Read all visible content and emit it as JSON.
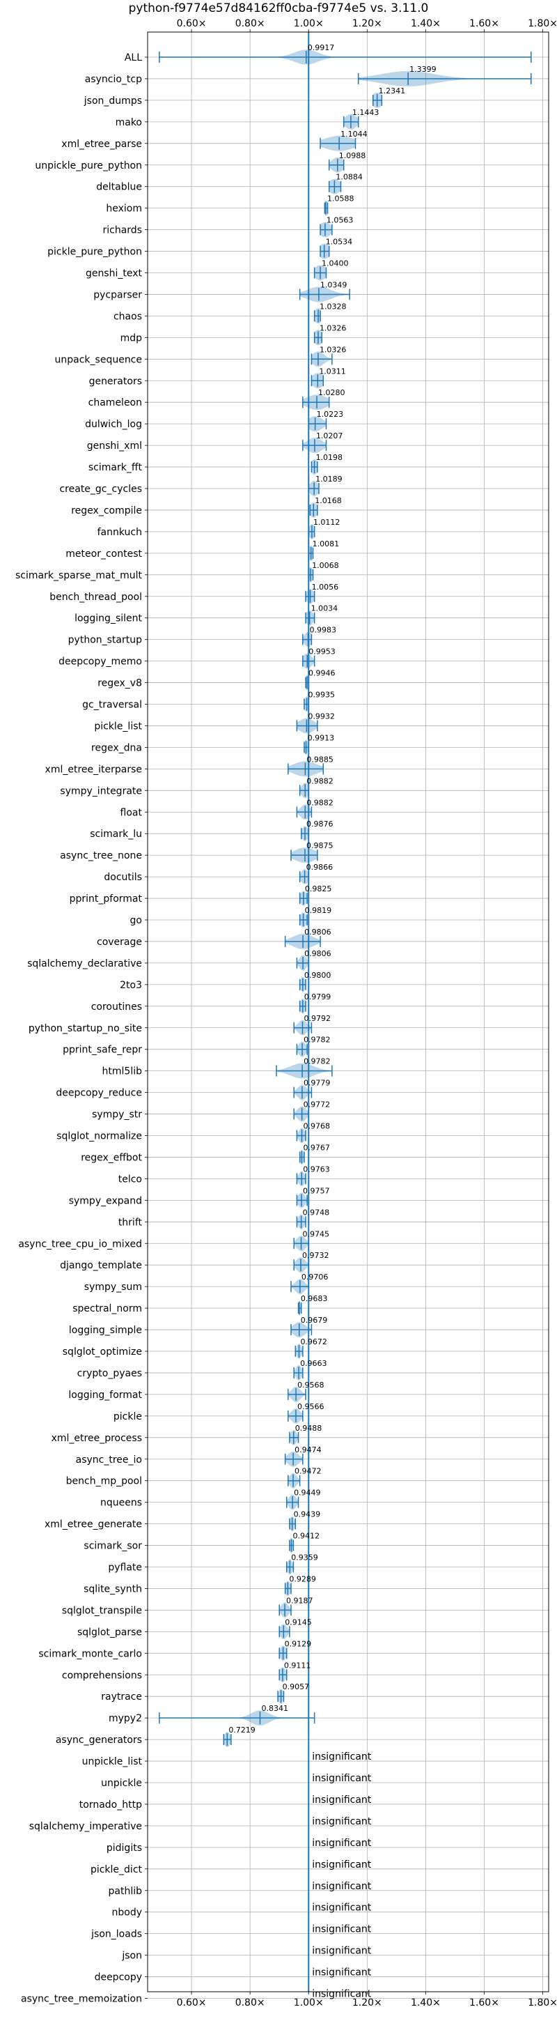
{
  "chart_data": {
    "type": "violin",
    "title": "python-f9774e57d84162ff0cba-f9774e5 vs. 3.11.0",
    "xlim": [
      0.45,
      1.82
    ],
    "xticks": [
      0.6,
      0.8,
      1.0,
      1.2,
      1.4,
      1.6,
      1.8
    ],
    "xtick_labels": [
      "0.60×",
      "0.80×",
      "1.00×",
      "1.20×",
      "1.40×",
      "1.60×",
      "1.80×"
    ],
    "reference_line": 1.0,
    "grid": true,
    "insignificant_label": "insignificant",
    "benchmarks": [
      {
        "name": "ALL",
        "value": 0.9917,
        "label": "0.9917",
        "min": 0.49,
        "max": 1.76,
        "spread": 0.04
      },
      {
        "name": "asyncio_tcp",
        "value": 1.3399,
        "label": "1.3399",
        "min": 1.17,
        "max": 1.76,
        "spread": 0.09
      },
      {
        "name": "json_dumps",
        "value": 1.2341,
        "label": "1.2341",
        "min": 1.22,
        "max": 1.25,
        "spread": 0.02
      },
      {
        "name": "mako",
        "value": 1.1443,
        "label": "1.1443",
        "min": 1.12,
        "max": 1.17,
        "spread": 0.02
      },
      {
        "name": "xml_etree_parse",
        "value": 1.1044,
        "label": "1.1044",
        "min": 1.04,
        "max": 1.16,
        "spread": 0.05
      },
      {
        "name": "unpickle_pure_python",
        "value": 1.0988,
        "label": "1.0988",
        "min": 1.07,
        "max": 1.12,
        "spread": 0.02
      },
      {
        "name": "deltablue",
        "value": 1.0884,
        "label": "1.0884",
        "min": 1.07,
        "max": 1.11,
        "spread": 0.02
      },
      {
        "name": "hexiom",
        "value": 1.0588,
        "label": "1.0588",
        "min": 1.055,
        "max": 1.065,
        "spread": 0.01
      },
      {
        "name": "richards",
        "value": 1.0563,
        "label": "1.0563",
        "min": 1.04,
        "max": 1.08,
        "spread": 0.02
      },
      {
        "name": "pickle_pure_python",
        "value": 1.0534,
        "label": "1.0534",
        "min": 1.04,
        "max": 1.07,
        "spread": 0.02
      },
      {
        "name": "genshi_text",
        "value": 1.04,
        "label": "1.0400",
        "min": 1.02,
        "max": 1.06,
        "spread": 0.02
      },
      {
        "name": "pycparser",
        "value": 1.0349,
        "label": "1.0349",
        "min": 0.97,
        "max": 1.14,
        "spread": 0.04
      },
      {
        "name": "chaos",
        "value": 1.0328,
        "label": "1.0328",
        "min": 1.02,
        "max": 1.04,
        "spread": 0.015
      },
      {
        "name": "mdp",
        "value": 1.0326,
        "label": "1.0326",
        "min": 1.02,
        "max": 1.045,
        "spread": 0.015
      },
      {
        "name": "unpack_sequence",
        "value": 1.0326,
        "label": "1.0326",
        "min": 1.01,
        "max": 1.08,
        "spread": 0.02
      },
      {
        "name": "generators",
        "value": 1.0311,
        "label": "1.0311",
        "min": 1.01,
        "max": 1.05,
        "spread": 0.02
      },
      {
        "name": "chameleon",
        "value": 1.028,
        "label": "1.0280",
        "min": 0.98,
        "max": 1.07,
        "spread": 0.035
      },
      {
        "name": "dulwich_log",
        "value": 1.0223,
        "label": "1.0223",
        "min": 1.0,
        "max": 1.06,
        "spread": 0.025
      },
      {
        "name": "genshi_xml",
        "value": 1.0207,
        "label": "1.0207",
        "min": 0.98,
        "max": 1.06,
        "spread": 0.025
      },
      {
        "name": "scimark_fft",
        "value": 1.0198,
        "label": "1.0198",
        "min": 1.01,
        "max": 1.03,
        "spread": 0.012
      },
      {
        "name": "create_gc_cycles",
        "value": 1.0189,
        "label": "1.0189",
        "min": 1.0,
        "max": 1.035,
        "spread": 0.015
      },
      {
        "name": "regex_compile",
        "value": 1.0168,
        "label": "1.0168",
        "min": 1.005,
        "max": 1.03,
        "spread": 0.012
      },
      {
        "name": "fannkuch",
        "value": 1.0112,
        "label": "1.0112",
        "min": 1.0,
        "max": 1.02,
        "spread": 0.01
      },
      {
        "name": "meteor_contest",
        "value": 1.0081,
        "label": "1.0081",
        "min": 1.0,
        "max": 1.015,
        "spread": 0.01
      },
      {
        "name": "scimark_sparse_mat_mult",
        "value": 1.0068,
        "label": "1.0068",
        "min": 1.0,
        "max": 1.015,
        "spread": 0.008
      },
      {
        "name": "bench_thread_pool",
        "value": 1.0056,
        "label": "1.0056",
        "min": 0.99,
        "max": 1.02,
        "spread": 0.012
      },
      {
        "name": "logging_silent",
        "value": 1.0034,
        "label": "1.0034",
        "min": 0.99,
        "max": 1.02,
        "spread": 0.012
      },
      {
        "name": "python_startup",
        "value": 0.9983,
        "label": "0.9983",
        "min": 0.98,
        "max": 1.01,
        "spread": 0.012
      },
      {
        "name": "deepcopy_memo",
        "value": 0.9953,
        "label": "0.9953",
        "min": 0.98,
        "max": 1.02,
        "spread": 0.015
      },
      {
        "name": "regex_v8",
        "value": 0.9946,
        "label": "0.9946",
        "min": 0.99,
        "max": 1.0,
        "spread": 0.006
      },
      {
        "name": "gc_traversal",
        "value": 0.9935,
        "label": "0.9935",
        "min": 0.985,
        "max": 1.0,
        "spread": 0.008
      },
      {
        "name": "pickle_list",
        "value": 0.9932,
        "label": "0.9932",
        "min": 0.96,
        "max": 1.03,
        "spread": 0.025
      },
      {
        "name": "regex_dna",
        "value": 0.9913,
        "label": "0.9913",
        "min": 0.985,
        "max": 1.0,
        "spread": 0.006
      },
      {
        "name": "xml_etree_iterparse",
        "value": 0.9885,
        "label": "0.9885",
        "min": 0.93,
        "max": 1.05,
        "spread": 0.04
      },
      {
        "name": "sympy_integrate",
        "value": 0.9882,
        "label": "0.9882",
        "min": 0.97,
        "max": 1.0,
        "spread": 0.012
      },
      {
        "name": "float",
        "value": 0.9882,
        "label": "0.9882",
        "min": 0.96,
        "max": 1.01,
        "spread": 0.015
      },
      {
        "name": "scimark_lu",
        "value": 0.9876,
        "label": "0.9876",
        "min": 0.975,
        "max": 1.0,
        "spread": 0.01
      },
      {
        "name": "async_tree_none",
        "value": 0.9875,
        "label": "0.9875",
        "min": 0.94,
        "max": 1.03,
        "spread": 0.035
      },
      {
        "name": "docutils",
        "value": 0.9866,
        "label": "0.9866",
        "min": 0.97,
        "max": 1.0,
        "spread": 0.012
      },
      {
        "name": "pprint_pformat",
        "value": 0.9825,
        "label": "0.9825",
        "min": 0.97,
        "max": 0.995,
        "spread": 0.01
      },
      {
        "name": "go",
        "value": 0.9819,
        "label": "0.9819",
        "min": 0.97,
        "max": 0.995,
        "spread": 0.01
      },
      {
        "name": "coverage",
        "value": 0.9806,
        "label": "0.9806",
        "min": 0.92,
        "max": 1.04,
        "spread": 0.035
      },
      {
        "name": "sqlalchemy_declarative",
        "value": 0.9806,
        "label": "0.9806",
        "min": 0.96,
        "max": 1.0,
        "spread": 0.012
      },
      {
        "name": "2to3",
        "value": 0.98,
        "label": "0.9800",
        "min": 0.97,
        "max": 0.99,
        "spread": 0.008
      },
      {
        "name": "coroutines",
        "value": 0.9799,
        "label": "0.9799",
        "min": 0.97,
        "max": 0.99,
        "spread": 0.008
      },
      {
        "name": "python_startup_no_site",
        "value": 0.9792,
        "label": "0.9792",
        "min": 0.95,
        "max": 1.01,
        "spread": 0.015
      },
      {
        "name": "pprint_safe_repr",
        "value": 0.9782,
        "label": "0.9782",
        "min": 0.96,
        "max": 0.995,
        "spread": 0.012
      },
      {
        "name": "html5lib",
        "value": 0.9782,
        "label": "0.9782",
        "min": 0.89,
        "max": 1.08,
        "spread": 0.04
      },
      {
        "name": "deepcopy_reduce",
        "value": 0.9779,
        "label": "0.9779",
        "min": 0.95,
        "max": 1.01,
        "spread": 0.015
      },
      {
        "name": "sympy_str",
        "value": 0.9772,
        "label": "0.9772",
        "min": 0.95,
        "max": 1.0,
        "spread": 0.015
      },
      {
        "name": "sqlglot_normalize",
        "value": 0.9768,
        "label": "0.9768",
        "min": 0.96,
        "max": 0.99,
        "spread": 0.01
      },
      {
        "name": "regex_effbot",
        "value": 0.9767,
        "label": "0.9767",
        "min": 0.97,
        "max": 0.985,
        "spread": 0.006
      },
      {
        "name": "telco",
        "value": 0.9763,
        "label": "0.9763",
        "min": 0.96,
        "max": 0.99,
        "spread": 0.01
      },
      {
        "name": "sympy_expand",
        "value": 0.9757,
        "label": "0.9757",
        "min": 0.96,
        "max": 0.995,
        "spread": 0.012
      },
      {
        "name": "thrift",
        "value": 0.9748,
        "label": "0.9748",
        "min": 0.96,
        "max": 0.99,
        "spread": 0.01
      },
      {
        "name": "async_tree_cpu_io_mixed",
        "value": 0.9745,
        "label": "0.9745",
        "min": 0.95,
        "max": 1.0,
        "spread": 0.015
      },
      {
        "name": "django_template",
        "value": 0.9732,
        "label": "0.9732",
        "min": 0.95,
        "max": 1.0,
        "spread": 0.015
      },
      {
        "name": "sympy_sum",
        "value": 0.9706,
        "label": "0.9706",
        "min": 0.94,
        "max": 1.0,
        "spread": 0.015
      },
      {
        "name": "spectral_norm",
        "value": 0.9683,
        "label": "0.9683",
        "min": 0.965,
        "max": 0.975,
        "spread": 0.004
      },
      {
        "name": "logging_simple",
        "value": 0.9679,
        "label": "0.9679",
        "min": 0.94,
        "max": 1.01,
        "spread": 0.02
      },
      {
        "name": "sqlglot_optimize",
        "value": 0.9672,
        "label": "0.9672",
        "min": 0.955,
        "max": 0.98,
        "spread": 0.008
      },
      {
        "name": "crypto_pyaes",
        "value": 0.9663,
        "label": "0.9663",
        "min": 0.95,
        "max": 0.98,
        "spread": 0.01
      },
      {
        "name": "logging_format",
        "value": 0.9568,
        "label": "0.9568",
        "min": 0.93,
        "max": 0.99,
        "spread": 0.015
      },
      {
        "name": "pickle",
        "value": 0.9566,
        "label": "0.9566",
        "min": 0.93,
        "max": 0.98,
        "spread": 0.015
      },
      {
        "name": "xml_etree_process",
        "value": 0.9488,
        "label": "0.9488",
        "min": 0.935,
        "max": 0.965,
        "spread": 0.01
      },
      {
        "name": "async_tree_io",
        "value": 0.9474,
        "label": "0.9474",
        "min": 0.92,
        "max": 0.98,
        "spread": 0.018
      },
      {
        "name": "bench_mp_pool",
        "value": 0.9472,
        "label": "0.9472",
        "min": 0.93,
        "max": 0.97,
        "spread": 0.012
      },
      {
        "name": "nqueens",
        "value": 0.9449,
        "label": "0.9449",
        "min": 0.925,
        "max": 0.965,
        "spread": 0.012
      },
      {
        "name": "xml_etree_generate",
        "value": 0.9439,
        "label": "0.9439",
        "min": 0.935,
        "max": 0.955,
        "spread": 0.008
      },
      {
        "name": "scimark_sor",
        "value": 0.9412,
        "label": "0.9412",
        "min": 0.935,
        "max": 0.948,
        "spread": 0.006
      },
      {
        "name": "pyflate",
        "value": 0.9359,
        "label": "0.9359",
        "min": 0.925,
        "max": 0.948,
        "spread": 0.008
      },
      {
        "name": "sqlite_synth",
        "value": 0.9289,
        "label": "0.9289",
        "min": 0.92,
        "max": 0.94,
        "spread": 0.008
      },
      {
        "name": "sqlglot_transpile",
        "value": 0.9187,
        "label": "0.9187",
        "min": 0.9,
        "max": 0.94,
        "spread": 0.012
      },
      {
        "name": "sqlglot_parse",
        "value": 0.9145,
        "label": "0.9145",
        "min": 0.9,
        "max": 0.935,
        "spread": 0.012
      },
      {
        "name": "scimark_monte_carlo",
        "value": 0.9129,
        "label": "0.9129",
        "min": 0.9,
        "max": 0.925,
        "spread": 0.01
      },
      {
        "name": "comprehensions",
        "value": 0.9111,
        "label": "0.9111",
        "min": 0.9,
        "max": 0.925,
        "spread": 0.01
      },
      {
        "name": "raytrace",
        "value": 0.9057,
        "label": "0.9057",
        "min": 0.895,
        "max": 0.915,
        "spread": 0.008
      },
      {
        "name": "mypy2",
        "value": 0.8341,
        "label": "0.8341",
        "min": 0.49,
        "max": 1.02,
        "spread": 0.03
      },
      {
        "name": "async_generators",
        "value": 0.7219,
        "label": "0.7219",
        "min": 0.71,
        "max": 0.735,
        "spread": 0.01
      },
      {
        "name": "unpickle_list",
        "insignificant": true
      },
      {
        "name": "unpickle",
        "insignificant": true
      },
      {
        "name": "tornado_http",
        "insignificant": true
      },
      {
        "name": "sqlalchemy_imperative",
        "insignificant": true
      },
      {
        "name": "pidigits",
        "insignificant": true
      },
      {
        "name": "pickle_dict",
        "insignificant": true
      },
      {
        "name": "pathlib",
        "insignificant": true
      },
      {
        "name": "nbody",
        "insignificant": true
      },
      {
        "name": "json_loads",
        "insignificant": true
      },
      {
        "name": "json",
        "insignificant": true
      },
      {
        "name": "deepcopy",
        "insignificant": true
      },
      {
        "name": "async_tree_memoization",
        "insignificant": true
      }
    ],
    "colors": {
      "accent": "#1f77b4",
      "violin_fill": "#1f77b4",
      "grid": "#b0b0b0",
      "axis": "#000000",
      "text": "#000000"
    }
  }
}
